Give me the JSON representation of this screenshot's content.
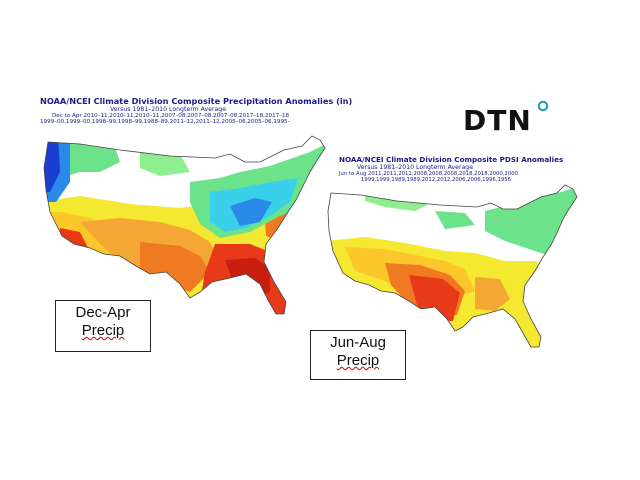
{
  "logo": {
    "text": "DTN",
    "dot_color": "#2aa0b8"
  },
  "map1": {
    "title": "NOAA/NCEI Climate Division Composite Precipitation Anomalies (in)",
    "subtitle": "Versus 1981–2010 Longterm Average",
    "years_line1": "Dec to Apr  2010–11,2010–11,2010–11,2007–08,2007–08,2007–08,2017–18,2017–18",
    "years_line2": "1999–00,1999–00,1998–99,1998–99,1988–89,2011–12,2011–12,2005–06,2005–06,1995–",
    "label_line1": "Dec-Apr",
    "label_line2": "Precip"
  },
  "map2": {
    "title": "NOAA/NCEI Climate Division Composite PDSI Anomalies",
    "subtitle": "Versus 1981–2010 Longterm Average",
    "years_line1": "Jun to Aug  2011,2011,2011,2008,2008,2008,2018,2018,2000,2000",
    "years_line2": "1999,1999,1989,1989,2012,2012,2006,2006,1996,1956",
    "label_line1": "Jun-Aug",
    "label_line2": "Precip"
  },
  "colors": {
    "dark_red": "#c81e10",
    "red": "#e83a18",
    "orange": "#f07a22",
    "light_orange": "#f5a735",
    "yellow_orange": "#fcc72a",
    "yellow": "#f5e830",
    "white": "#ffffff",
    "light_green": "#8fee8f",
    "green": "#6ce28a",
    "cyan": "#3ad0ea",
    "blue": "#2a8ae8",
    "dark_blue": "#1a3fd0"
  }
}
